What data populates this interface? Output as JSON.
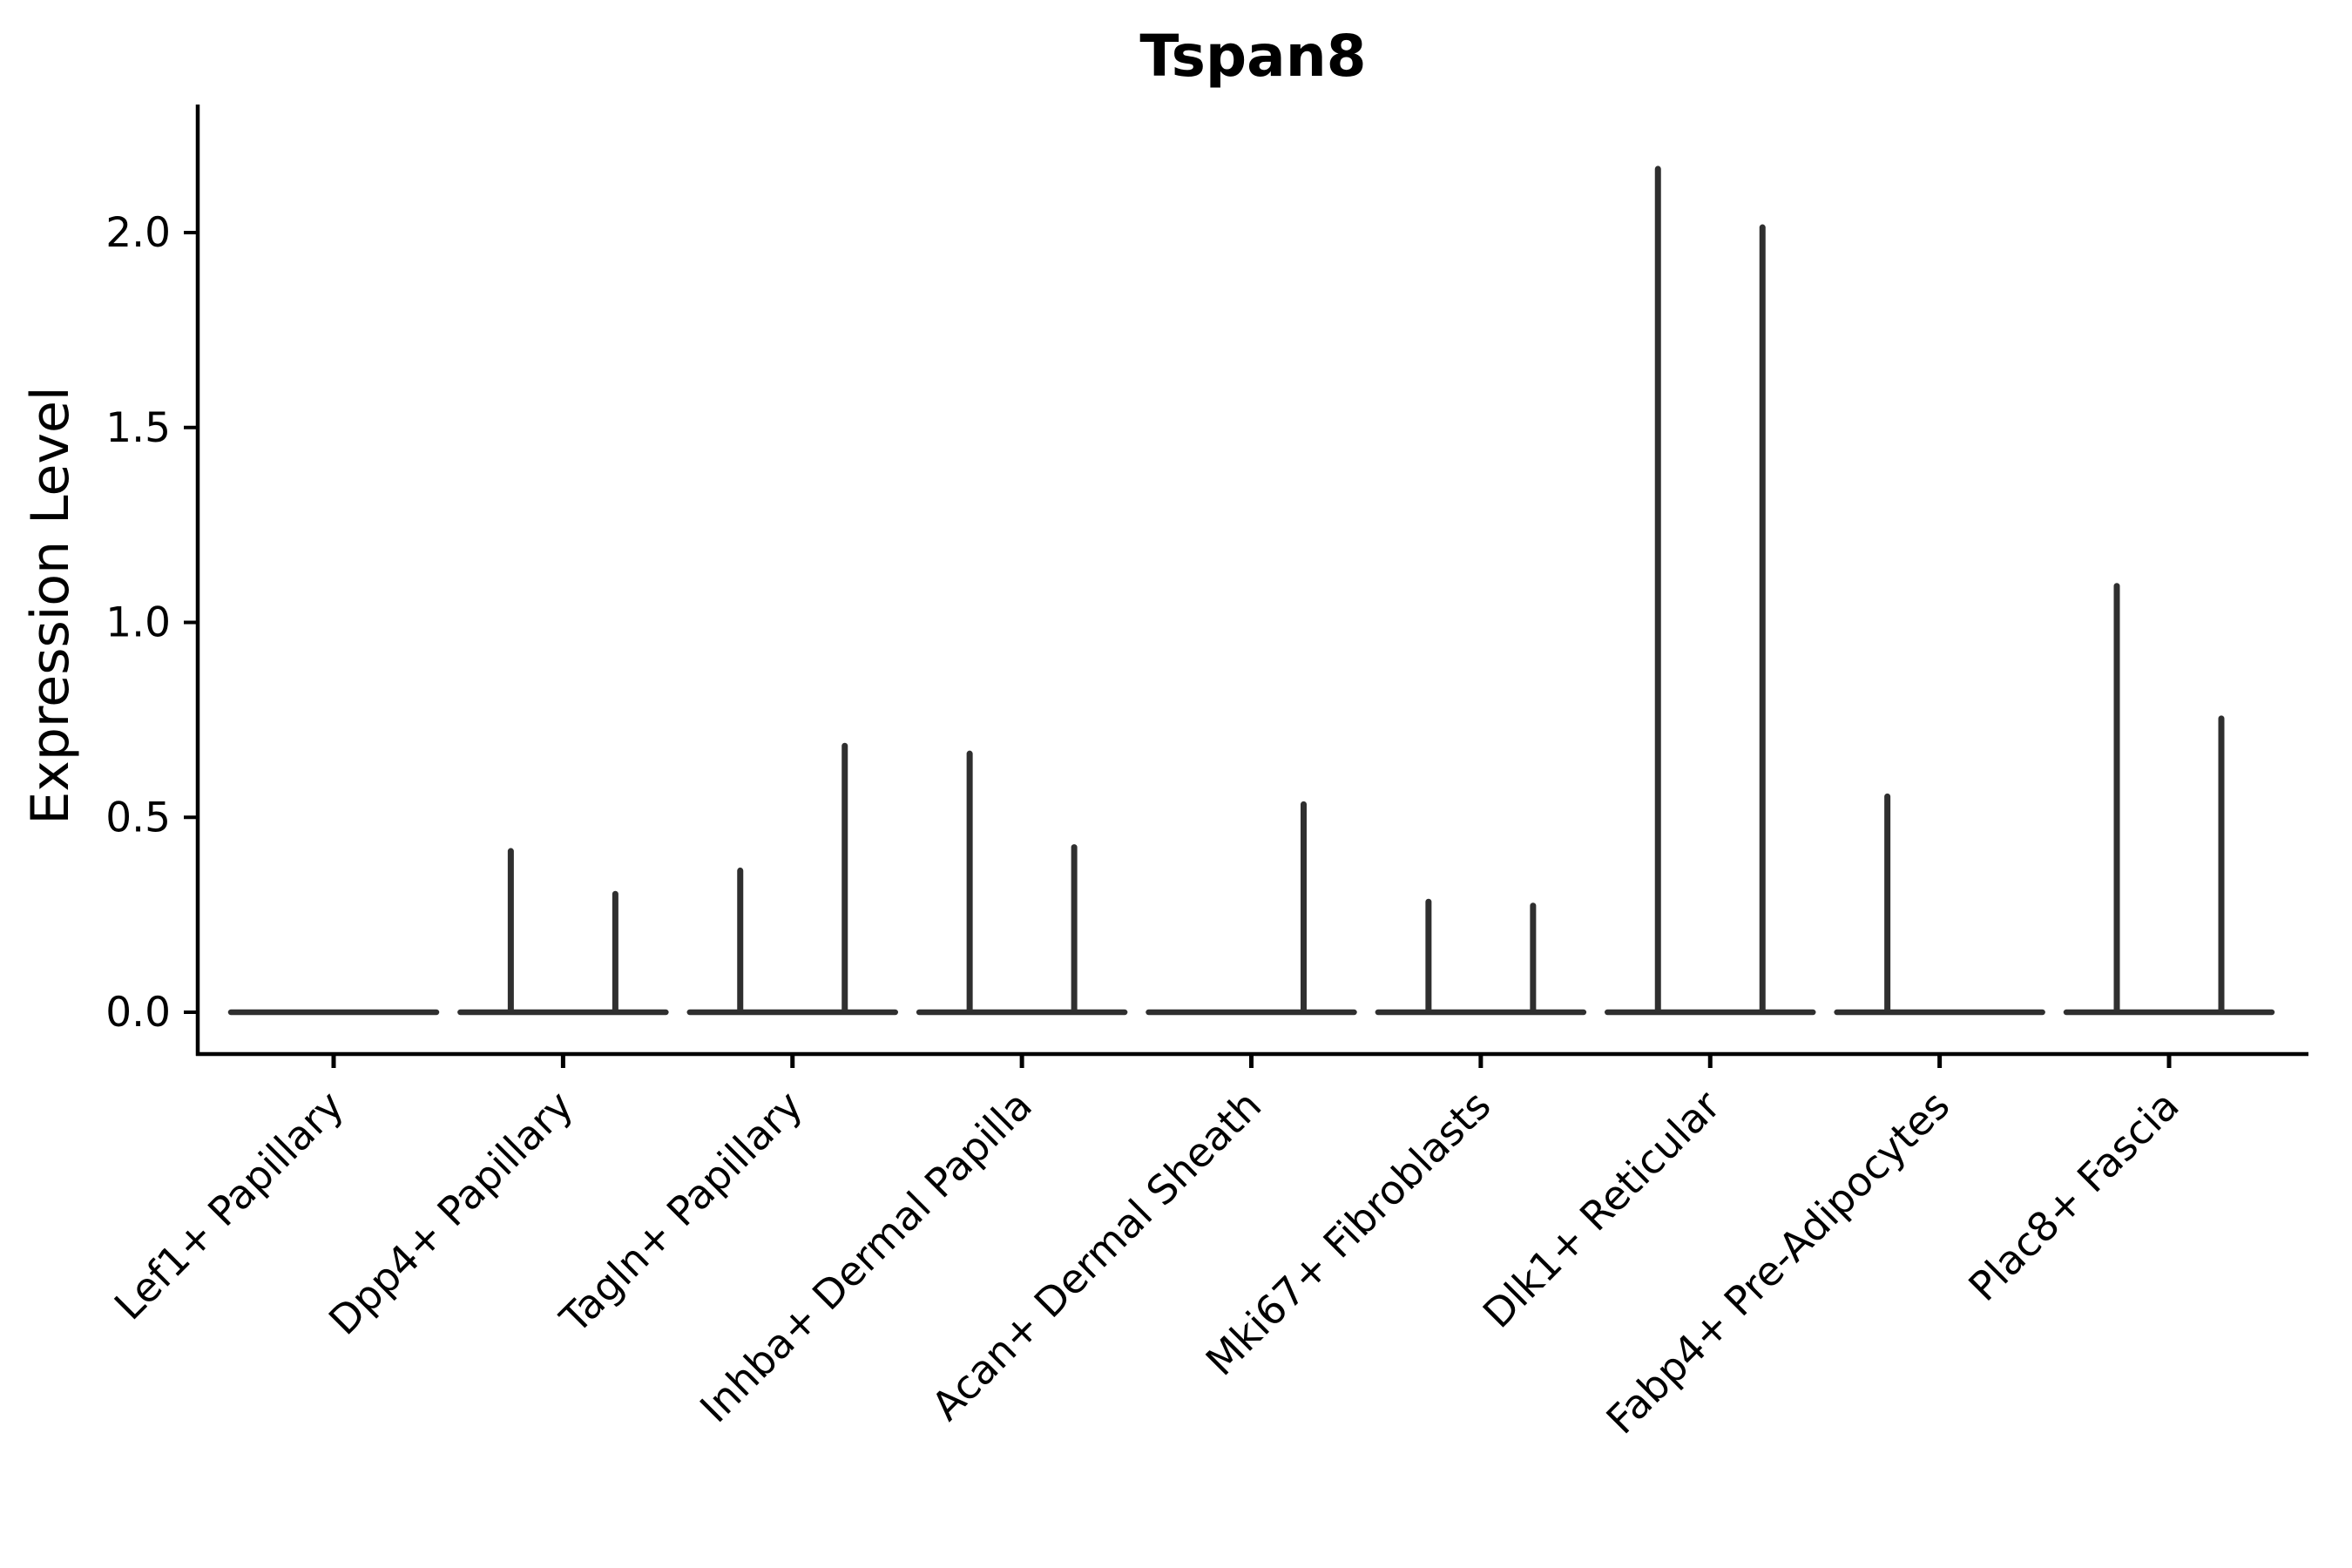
{
  "chart_data": {
    "type": "violin",
    "title": "Tspan8",
    "ylabel": "Expression Level",
    "xlabel": "",
    "legend": "none",
    "grid": false,
    "ytick_labels": [
      "0.0",
      "0.5",
      "1.0",
      "1.5",
      "2.0"
    ],
    "ytick_values": [
      0.0,
      0.5,
      1.0,
      1.5,
      2.0
    ],
    "ylim": [
      -0.11,
      2.33
    ],
    "categories": [
      "Lef1+ Papillary",
      "Dpp4+ Papillary",
      "Tagln+ Papillary",
      "Inhba+ Dermal Papilla",
      "Acan+ Dermal Sheath",
      "Mki67+ Fibroblasts",
      "Dlk1+ Reticular",
      "Fabp4+ Pre-Adipocytes",
      "Plac8+ Fascia"
    ],
    "violins": [
      {
        "category": "Lef1+ Papillary",
        "baseline_value": 0.0,
        "spikes": []
      },
      {
        "category": "Dpp4+ Papillary",
        "baseline_value": 0.0,
        "spikes": [
          {
            "position": "left",
            "max_value": 0.42
          },
          {
            "position": "right",
            "max_value": 0.31
          }
        ]
      },
      {
        "category": "Tagln+ Papillary",
        "baseline_value": 0.0,
        "spikes": [
          {
            "position": "left",
            "max_value": 0.37
          },
          {
            "position": "right",
            "max_value": 0.69
          }
        ]
      },
      {
        "category": "Inhba+ Dermal Papilla",
        "baseline_value": 0.0,
        "spikes": [
          {
            "position": "left",
            "max_value": 0.67
          },
          {
            "position": "right",
            "max_value": 0.43
          }
        ]
      },
      {
        "category": "Acan+ Dermal Sheath",
        "baseline_value": 0.0,
        "spikes": [
          {
            "position": "right",
            "max_value": 0.54
          }
        ]
      },
      {
        "category": "Mki67+ Fibroblasts",
        "baseline_value": 0.0,
        "spikes": [
          {
            "position": "left",
            "max_value": 0.29
          },
          {
            "position": "right",
            "max_value": 0.28
          }
        ]
      },
      {
        "category": "Dlk1+ Reticular",
        "baseline_value": 0.0,
        "spikes": [
          {
            "position": "left",
            "max_value": 2.17
          },
          {
            "position": "right",
            "max_value": 2.02
          }
        ]
      },
      {
        "category": "Fabp4+ Pre-Adipocytes",
        "baseline_value": 0.0,
        "spikes": [
          {
            "position": "left",
            "max_value": 0.56
          }
        ]
      },
      {
        "category": "Plac8+ Fascia",
        "baseline_value": 0.0,
        "spikes": [
          {
            "position": "left",
            "max_value": 1.1
          },
          {
            "position": "right",
            "max_value": 0.76
          }
        ]
      }
    ],
    "colors": {
      "violin": "#2f2f2f",
      "axis": "#000000",
      "text": "#000000",
      "background": "#ffffff"
    }
  }
}
